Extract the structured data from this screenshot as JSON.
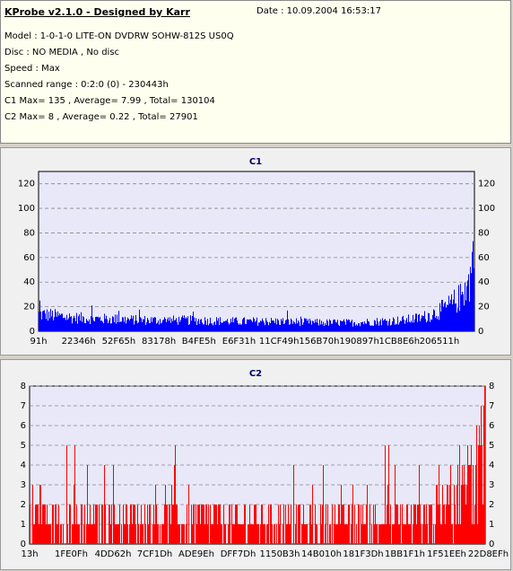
{
  "info": {
    "title": "KProbe v2.1.0 - Designed by Karr",
    "date": "Date : 10.09.2004 16:53:17",
    "model": "Model : 1-0-1-0 LITE-ON DVDRW SOHW-812S  US0Q",
    "disc": "Disc : NO MEDIA , No disc",
    "speed": "Speed : Max",
    "range": "Scanned range : 0:2:0 (0) - 230443h",
    "c1": "C1 Max= 135 , Average= 7.99 , Total= 130104",
    "c2": "C2 Max= 8 , Average= 0.22 , Total= 27901"
  },
  "chart_data": [
    {
      "type": "bar",
      "title": "C1",
      "color": "#0000ff",
      "ylim": [
        0,
        130
      ],
      "yticks": [
        0,
        20,
        40,
        60,
        80,
        100,
        120
      ],
      "xticks": [
        "91h",
        "22346h",
        "52F65h",
        "83178h",
        "B4FE5h",
        "E6F31h",
        "11CF49h",
        "156B70h",
        "190897h",
        "1CB8E6h",
        "206511h"
      ],
      "grid": true,
      "profile": [
        [
          0.0,
          14
        ],
        [
          0.03,
          13
        ],
        [
          0.08,
          11
        ],
        [
          0.15,
          10
        ],
        [
          0.25,
          9
        ],
        [
          0.35,
          9
        ],
        [
          0.45,
          8
        ],
        [
          0.55,
          8
        ],
        [
          0.65,
          7
        ],
        [
          0.72,
          7
        ],
        [
          0.78,
          8
        ],
        [
          0.84,
          9
        ],
        [
          0.88,
          11
        ],
        [
          0.91,
          15
        ],
        [
          0.94,
          20
        ],
        [
          0.97,
          28
        ],
        [
          0.99,
          40
        ],
        [
          1.0,
          70
        ]
      ]
    },
    {
      "type": "bar",
      "title": "C2",
      "color": "#ff0000",
      "ylim": [
        0,
        8
      ],
      "yticks": [
        0,
        1,
        2,
        3,
        4,
        5,
        6,
        7,
        8
      ],
      "xticks": [
        "13h",
        "1FE0Fh",
        "4DD62h",
        "7CF1Dh",
        "ADE9Eh",
        "DFF7Dh",
        "1150B3h",
        "14B010h",
        "181F3Dh",
        "1BB1F1h",
        "1F51EEh",
        "22D8EFh"
      ],
      "grid": true,
      "profile": [
        [
          0.0,
          1.5
        ],
        [
          0.2,
          1.2
        ],
        [
          0.5,
          1.1
        ],
        [
          0.7,
          1.0
        ],
        [
          0.82,
          1.2
        ],
        [
          0.9,
          1.6
        ],
        [
          0.95,
          2.5
        ],
        [
          0.99,
          4
        ],
        [
          1.0,
          7
        ]
      ]
    }
  ]
}
